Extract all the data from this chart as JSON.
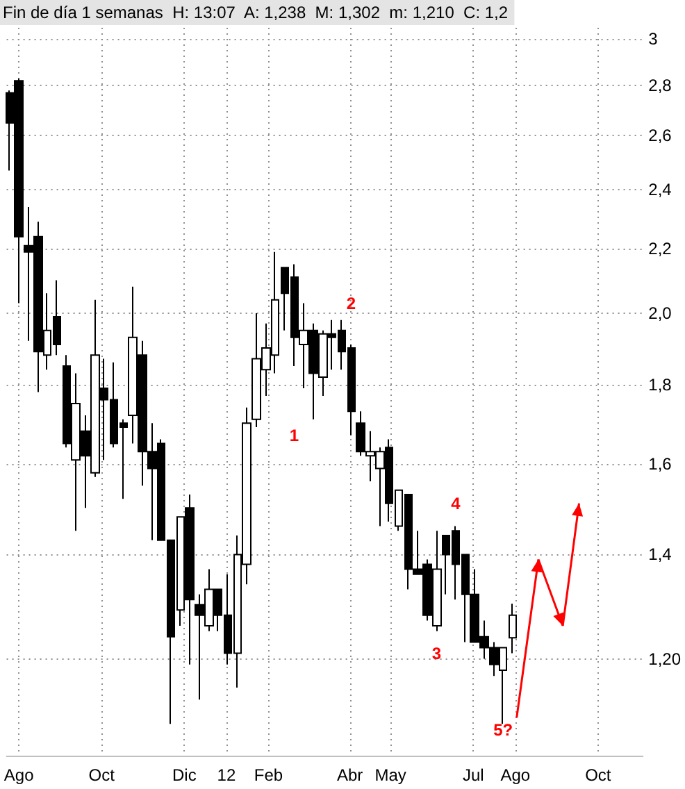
{
  "chart_data": {
    "type": "candlestick",
    "title": "Fin de día 1 semanas  H: 13:07  A: 1,238  M: 1,302  m: 1,210  C: 1,2",
    "x": [
      "2011-07-25",
      "2011-08-01",
      "2011-08-08",
      "2011-08-15",
      "2011-08-22",
      "2011-08-29",
      "2011-09-05",
      "2011-09-12",
      "2011-09-19",
      "2011-09-26",
      "2011-10-03",
      "2011-10-10",
      "2011-10-17",
      "2011-10-24",
      "2011-10-31",
      "2011-11-07",
      "2011-11-14",
      "2011-11-21",
      "2011-11-28",
      "2011-12-05",
      "2011-12-12",
      "2011-12-19",
      "2011-12-26",
      "2012-01-02",
      "2012-01-09",
      "2012-01-16",
      "2012-01-23",
      "2012-01-30",
      "2012-02-06",
      "2012-02-13",
      "2012-02-20",
      "2012-02-27",
      "2012-03-05",
      "2012-03-12",
      "2012-03-19",
      "2012-03-26",
      "2012-04-02",
      "2012-04-09",
      "2012-04-16",
      "2012-04-23",
      "2012-04-30",
      "2012-05-07",
      "2012-05-14",
      "2012-05-21",
      "2012-05-28",
      "2012-06-04",
      "2012-06-11",
      "2012-06-18",
      "2012-06-25",
      "2012-07-02",
      "2012-07-09",
      "2012-07-16",
      "2012-07-23",
      "2012-07-30"
    ],
    "ohlc": [
      [
        2.77,
        2.78,
        2.47,
        2.65
      ],
      [
        2.82,
        2.83,
        2.03,
        2.24
      ],
      [
        2.21,
        2.34,
        1.92,
        2.19
      ],
      [
        2.24,
        2.29,
        1.78,
        1.89
      ],
      [
        1.88,
        2.06,
        1.84,
        1.95
      ],
      [
        1.99,
        2.1,
        1.88,
        1.91
      ],
      [
        1.85,
        1.88,
        1.64,
        1.65
      ],
      [
        1.61,
        1.83,
        1.45,
        1.75
      ],
      [
        1.68,
        1.72,
        1.5,
        1.62
      ],
      [
        1.58,
        2.04,
        1.57,
        1.88
      ],
      [
        1.79,
        1.87,
        1.61,
        1.76
      ],
      [
        1.76,
        1.86,
        1.64,
        1.65
      ],
      [
        1.7,
        1.71,
        1.52,
        1.69
      ],
      [
        1.72,
        2.08,
        1.65,
        1.93
      ],
      [
        1.88,
        1.92,
        1.55,
        1.63
      ],
      [
        1.63,
        1.7,
        1.43,
        1.59
      ],
      [
        1.65,
        1.66,
        1.43,
        1.43
      ],
      [
        1.43,
        1.43,
        1.09,
        1.24
      ],
      [
        1.29,
        1.48,
        1.26,
        1.48
      ],
      [
        1.5,
        1.53,
        1.19,
        1.31
      ],
      [
        1.3,
        1.32,
        1.13,
        1.28
      ],
      [
        1.26,
        1.37,
        1.25,
        1.33
      ],
      [
        1.33,
        1.33,
        1.25,
        1.28
      ],
      [
        1.28,
        1.36,
        1.19,
        1.21
      ],
      [
        1.21,
        1.44,
        1.15,
        1.4
      ],
      [
        1.38,
        1.74,
        1.34,
        1.7
      ],
      [
        1.71,
        2.0,
        1.69,
        1.87
      ],
      [
        1.84,
        1.97,
        1.77,
        1.9
      ],
      [
        1.88,
        2.19,
        1.83,
        2.04
      ],
      [
        2.14,
        2.14,
        1.95,
        2.06
      ],
      [
        2.11,
        2.15,
        1.85,
        1.93
      ],
      [
        1.91,
        2.03,
        1.79,
        1.95
      ],
      [
        1.95,
        1.97,
        1.71,
        1.83
      ],
      [
        1.82,
        1.95,
        1.77,
        1.94
      ],
      [
        1.94,
        1.98,
        1.84,
        1.93
      ],
      [
        1.95,
        1.98,
        1.84,
        1.89
      ],
      [
        1.9,
        1.91,
        1.67,
        1.73
      ],
      [
        1.7,
        1.73,
        1.62,
        1.63
      ],
      [
        1.62,
        1.68,
        1.56,
        1.63
      ],
      [
        1.59,
        1.64,
        1.46,
        1.63
      ],
      [
        1.64,
        1.66,
        1.47,
        1.51
      ],
      [
        1.46,
        1.54,
        1.45,
        1.54
      ],
      [
        1.53,
        1.53,
        1.33,
        1.37
      ],
      [
        1.37,
        1.45,
        1.36,
        1.36
      ],
      [
        1.38,
        1.39,
        1.27,
        1.28
      ],
      [
        1.26,
        1.45,
        1.25,
        1.37
      ],
      [
        1.44,
        1.44,
        1.32,
        1.4
      ],
      [
        1.45,
        1.46,
        1.31,
        1.38
      ],
      [
        1.4,
        1.4,
        1.23,
        1.32
      ],
      [
        1.32,
        1.37,
        1.23,
        1.23
      ],
      [
        1.24,
        1.27,
        1.2,
        1.22
      ],
      [
        1.22,
        1.23,
        1.17,
        1.19
      ],
      [
        1.18,
        1.22,
        1.09,
        1.22
      ],
      [
        1.238,
        1.302,
        1.21,
        1.28
      ]
    ],
    "xlim": [
      "2011-07-23",
      "2012-11-03"
    ],
    "xticks": [
      {
        "value": "2011-08-01",
        "label": "Ago"
      },
      {
        "value": "2011-10-01",
        "label": "Oct"
      },
      {
        "value": "2011-12-01",
        "label": "Dic"
      },
      {
        "value": "2012-01-01",
        "label": "12"
      },
      {
        "value": "2012-02-01",
        "label": "Feb"
      },
      {
        "value": "2012-04-01",
        "label": "Abr"
      },
      {
        "value": "2012-05-01",
        "label": "May"
      },
      {
        "value": "2012-07-01",
        "label": "Jul"
      },
      {
        "value": "2012-08-01",
        "label": "Ago"
      },
      {
        "value": "2012-10-01",
        "label": "Oct"
      }
    ],
    "ylim": [
      1.04,
      3.05
    ],
    "yticks": [
      {
        "value": 1.2,
        "label": "1,20"
      },
      {
        "value": 1.4,
        "label": "1,4"
      },
      {
        "value": 1.6,
        "label": "1,6"
      },
      {
        "value": 1.8,
        "label": "1,8"
      },
      {
        "value": 2.0,
        "label": "2,0"
      },
      {
        "value": 2.2,
        "label": "2,2"
      },
      {
        "value": 2.4,
        "label": "2,4"
      },
      {
        "value": 2.6,
        "label": "2,6"
      },
      {
        "value": 2.8,
        "label": "2,8"
      },
      3
    ],
    "log": "y",
    "grid": true,
    "annotations": [
      "1",
      "2",
      "3",
      "4",
      {
        "text": "5?",
        "x": "2012-07-23",
        "y": 1.08
      }
    ]
  }
}
